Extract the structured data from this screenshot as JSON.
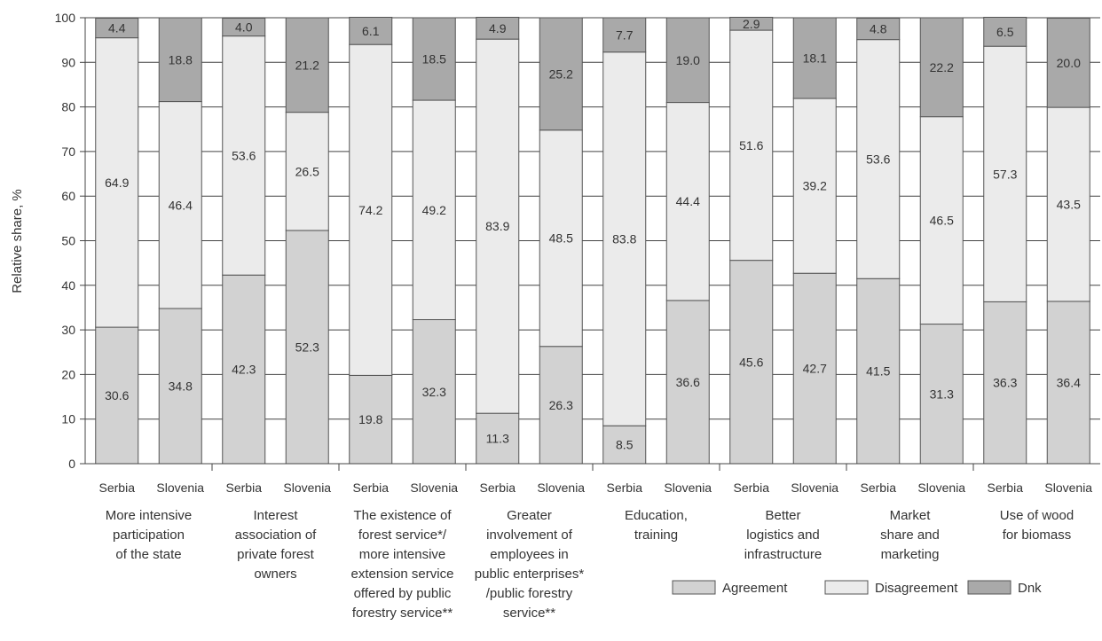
{
  "chart_data": {
    "type": "bar",
    "stacked": true,
    "ylabel": "Relative share, %",
    "ylim": [
      0,
      100
    ],
    "yticks": [
      0,
      10,
      20,
      30,
      40,
      50,
      60,
      70,
      80,
      90,
      100
    ],
    "grid": true,
    "legend_position": "bottom-right",
    "groups": [
      {
        "label": [
          "More intensive",
          "participation",
          "of the state"
        ]
      },
      {
        "label": [
          "Interest",
          "association of",
          "private forest",
          "owners"
        ]
      },
      {
        "label": [
          "The existence of",
          "forest service*/",
          "more intensive",
          "extension service",
          "offered by public",
          "forestry service**"
        ]
      },
      {
        "label": [
          "Greater",
          "involvement of",
          "employees in",
          "public enterprises*",
          "/public forestry",
          "service**"
        ]
      },
      {
        "label": [
          "Education,",
          "training"
        ]
      },
      {
        "label": [
          "Better",
          "logistics and",
          "infrastructure"
        ]
      },
      {
        "label": [
          "Market",
          "share and",
          "marketing"
        ]
      },
      {
        "label": [
          "Use of wood",
          "for biomass"
        ]
      }
    ],
    "categories": [
      "Serbia",
      "Slovenia",
      "Serbia",
      "Slovenia",
      "Serbia",
      "Slovenia",
      "Serbia",
      "Slovenia",
      "Serbia",
      "Slovenia",
      "Serbia",
      "Slovenia",
      "Serbia",
      "Slovenia",
      "Serbia",
      "Slovenia"
    ],
    "series": [
      {
        "name": "Agreement",
        "color": "#d2d2d2",
        "values": [
          30.6,
          34.8,
          42.3,
          52.3,
          19.8,
          32.3,
          11.3,
          26.3,
          8.5,
          36.6,
          45.6,
          42.7,
          41.5,
          31.3,
          36.3,
          36.4
        ]
      },
      {
        "name": "Disagreement",
        "color": "#ebebeb",
        "values": [
          64.9,
          46.4,
          53.6,
          26.5,
          74.2,
          49.2,
          83.9,
          48.5,
          83.8,
          44.4,
          51.6,
          39.2,
          53.6,
          46.5,
          57.3,
          43.5
        ]
      },
      {
        "name": "Dnk",
        "color": "#a9a9a9",
        "values": [
          4.4,
          18.8,
          4.0,
          21.2,
          6.1,
          18.5,
          4.9,
          25.2,
          7.7,
          19.0,
          2.9,
          18.1,
          4.8,
          22.2,
          6.5,
          20.0
        ]
      }
    ]
  }
}
